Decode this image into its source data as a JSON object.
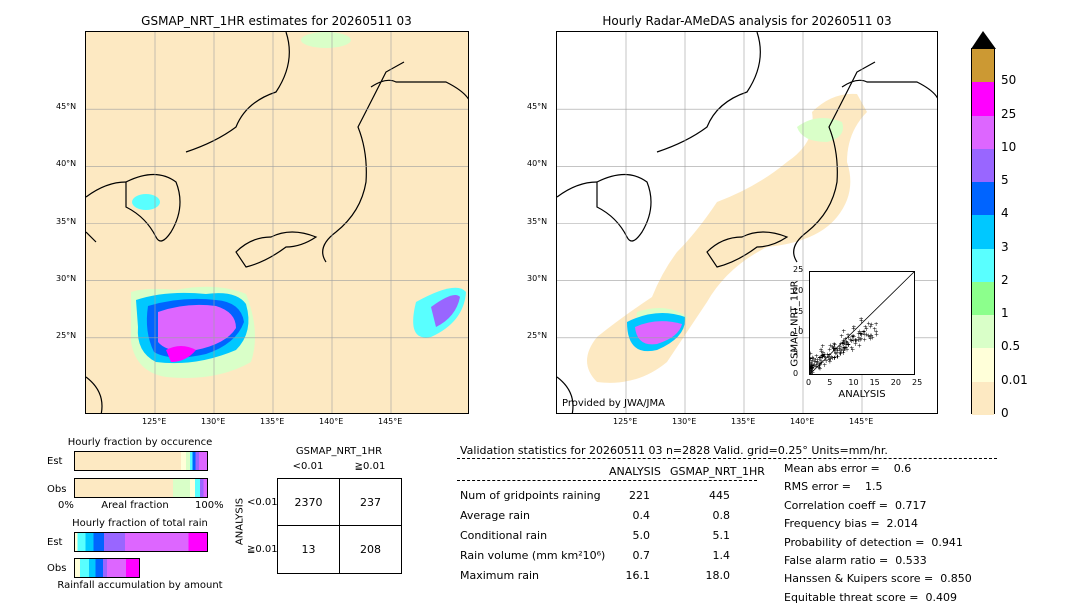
{
  "chart_data": [
    {
      "type": "map",
      "title": "GSMAP_NRT_1HR estimates for 20260511 03",
      "lat_ticks": [
        "45°N",
        "40°N",
        "35°N",
        "30°N",
        "25°N"
      ],
      "lon_ticks": [
        "125°E",
        "130°E",
        "135°E",
        "140°E",
        "145°E"
      ],
      "lat_range": [
        20,
        50
      ],
      "lon_range": [
        120,
        150
      ]
    },
    {
      "type": "map",
      "title": "Hourly Radar-AMeDAS analysis for 20260511 03",
      "lat_ticks": [
        "45°N",
        "40°N",
        "35°N",
        "30°N",
        "25°N"
      ],
      "lon_ticks": [
        "125°E",
        "130°E",
        "135°E",
        "140°E",
        "145°E"
      ],
      "lat_range": [
        20,
        50
      ],
      "lon_range": [
        120,
        150
      ],
      "credit": "Provided by JWA/JMA"
    },
    {
      "type": "scatter",
      "xlabel": "ANALYSIS",
      "ylabel": "GSMAP_NRT_1HR",
      "xlim": [
        0,
        25
      ],
      "ylim": [
        0,
        25
      ],
      "ticks": [
        "0",
        "5",
        "10",
        "15",
        "20",
        "25"
      ]
    },
    {
      "type": "colorbar",
      "levels": [
        "0",
        "0.01",
        "0.5",
        "1",
        "2",
        "3",
        "4",
        "5",
        "10",
        "25",
        "50"
      ],
      "colors": [
        "#fde9c2",
        "#ffffd9",
        "#d9ffc8",
        "#8cff8c",
        "#59ffff",
        "#00c8ff",
        "#0064ff",
        "#9966ff",
        "#dd66ff",
        "#ff00ff",
        "#cc9933"
      ]
    },
    {
      "type": "bar",
      "title": "Hourly fraction by occurence",
      "categories": [
        "Est",
        "Obs"
      ],
      "xlabel": "Areal fraction",
      "xticks": [
        "0%",
        "100%"
      ]
    },
    {
      "type": "bar",
      "title": "Hourly fraction of total rain",
      "categories": [
        "Est",
        "Obs"
      ],
      "xlabel": "Rainfall accumulation by amount"
    },
    {
      "type": "table",
      "title": "GSMAP_NRT_1HR",
      "col_headers": [
        "<0.01",
        "≧0.01"
      ],
      "row_axis_label": "ANALYSIS",
      "row_headers": [
        "<0.01",
        "≧0.01"
      ],
      "cells": [
        [
          "2370",
          "237"
        ],
        [
          "13",
          "208"
        ]
      ]
    }
  ],
  "validation": {
    "header": "Validation statistics for 20260511 03  n=2828 Valid. grid=0.25° Units=mm/hr.",
    "col_analysis": "ANALYSIS",
    "col_gsmap": "GSMAP_NRT_1HR",
    "rows": [
      {
        "label": "Num of gridpoints raining",
        "a": "221",
        "g": "445"
      },
      {
        "label": "Average rain",
        "a": "0.4",
        "g": "0.8"
      },
      {
        "label": "Conditional rain",
        "a": "5.0",
        "g": "5.1"
      },
      {
        "label": "Rain volume (mm km²10⁶)",
        "a": "0.7",
        "g": "1.4"
      },
      {
        "label": "Maximum rain",
        "a": "16.1",
        "g": "18.0"
      }
    ],
    "scores": [
      "Mean abs error =    0.6",
      "RMS error =    1.5",
      "Correlation coeff =  0.717",
      "Frequency bias =  2.014",
      "Probability of detection =  0.941",
      "False alarm ratio =  0.533",
      "Hanssen & Kuipers score =  0.850",
      "Equitable threat score =  0.409"
    ]
  }
}
